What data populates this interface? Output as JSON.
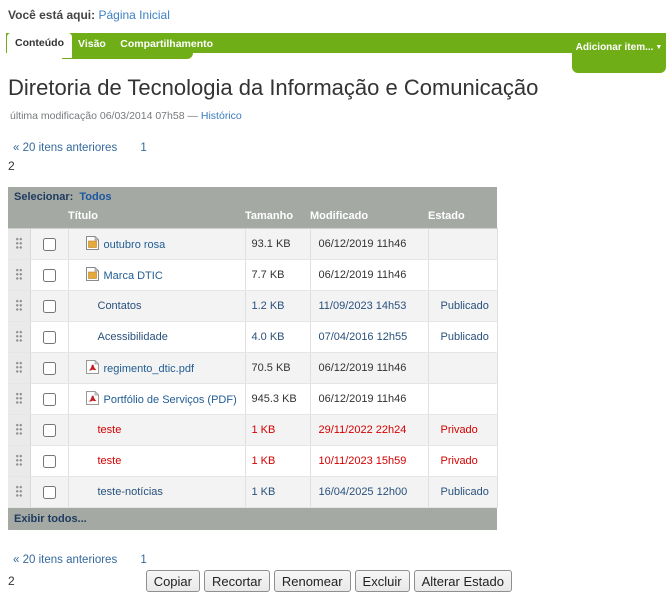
{
  "breadcrumb": {
    "label": "Você está aqui:",
    "link": "Página Inicial"
  },
  "tabs": {
    "active": "Conteúdo",
    "others": [
      "Visão",
      "Compartilhamento"
    ],
    "add_item_label": "Adicionar item...",
    "add_item_caret": "▼"
  },
  "page": {
    "title": "Diretoria de Tecnologia da Informação e Comunicação",
    "byline": "última modificação 06/03/2014 07h58 —",
    "byline_link": "Histórico"
  },
  "pagination": {
    "previous_label": "« 20 itens anteriores",
    "page_link": "1",
    "current_page": "2"
  },
  "table": {
    "select_label": "Selecionar:",
    "select_all_label": "Todos",
    "columns": {
      "title": "Título",
      "size": "Tamanho",
      "modified": "Modificado",
      "state": "Estado"
    },
    "rows": [
      {
        "icon": "image-icon",
        "title": "outubro rosa",
        "size": "93.1 KB",
        "modified": "06/12/2019 11h46",
        "state": "",
        "state_class": "none"
      },
      {
        "icon": "image-icon",
        "title": "Marca DTIC",
        "size": "7.7 KB",
        "modified": "06/12/2019 11h46",
        "state": "",
        "state_class": "none"
      },
      {
        "icon": null,
        "title": "Contatos",
        "size": "1.2 KB",
        "modified": "11/09/2023 14h53",
        "state": "Publicado",
        "state_class": "published"
      },
      {
        "icon": null,
        "title": "Acessibilidade",
        "size": "4.0 KB",
        "modified": "07/04/2016 12h55",
        "state": "Publicado",
        "state_class": "published"
      },
      {
        "icon": "pdf-icon",
        "title": "regimento_dtic.pdf",
        "size": "70.5 KB",
        "modified": "06/12/2019 11h46",
        "state": "",
        "state_class": "none"
      },
      {
        "icon": "pdf-icon",
        "title": "Portfólio de Serviços (PDF)",
        "size": "945.3 KB",
        "modified": "06/12/2019 11h46",
        "state": "",
        "state_class": "none"
      },
      {
        "icon": null,
        "title": "teste",
        "size": "1 KB",
        "modified": "29/11/2022 22h24",
        "state": "Privado",
        "state_class": "private"
      },
      {
        "icon": null,
        "title": "teste",
        "size": "1 KB",
        "modified": "10/11/2023 15h59",
        "state": "Privado",
        "state_class": "private"
      },
      {
        "icon": null,
        "title": "teste-notícias",
        "size": "1 KB",
        "modified": "16/04/2025 12h00",
        "state": "Publicado",
        "state_class": "published"
      }
    ],
    "show_all_label": "Exibir todos..."
  },
  "actions": {
    "buttons": [
      "Copiar",
      "Recortar",
      "Renomear",
      "Excluir",
      "Alterar Estado"
    ]
  },
  "colors": {
    "accent_green": "#6fae17",
    "header_gray": "#a4a9a4",
    "link_blue": "#215d94",
    "published_blue": "#29517c",
    "private_red": "#d40000"
  }
}
